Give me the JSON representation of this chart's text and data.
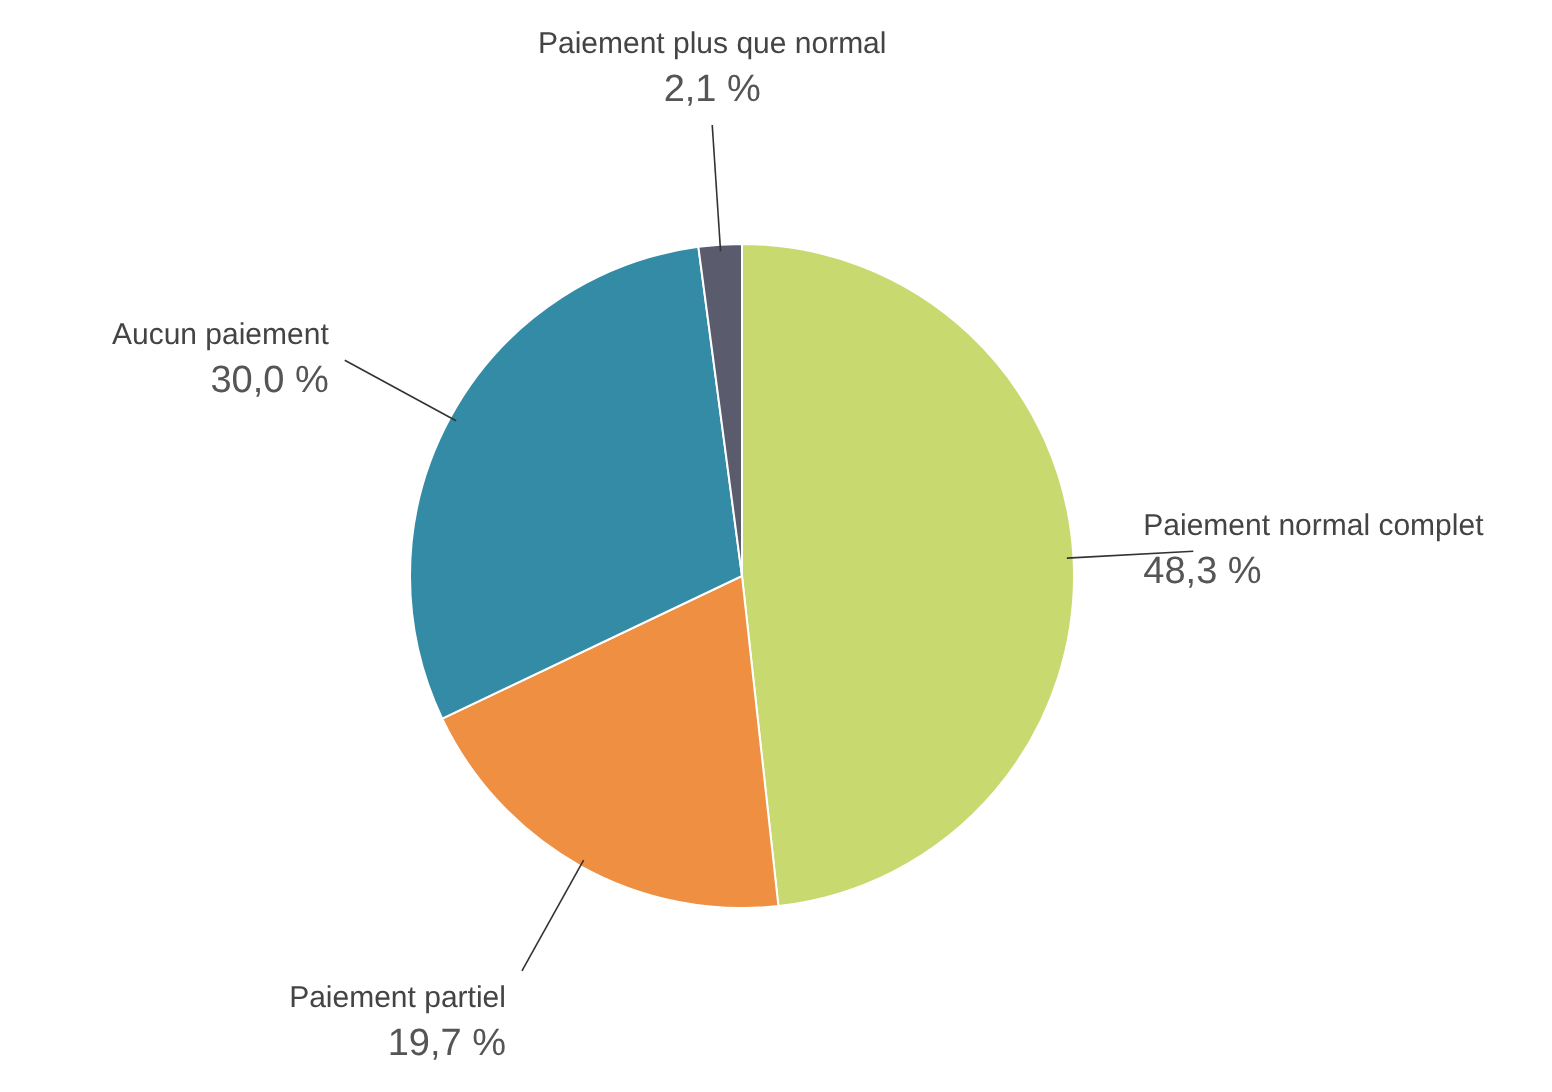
{
  "chart_data": {
    "type": "pie",
    "categories": [
      "Paiement normal complet",
      "Paiement partiel",
      "Aucun paiement",
      "Paiement plus que normal"
    ],
    "values": [
      48.3,
      19.7,
      30.0,
      2.1
    ],
    "colors": [
      "#c8d96f",
      "#ef8f42",
      "#348ba6",
      "#5b5b6e"
    ],
    "value_labels": [
      "48,3 %",
      "19,7 %",
      "30,0 %",
      "2,1 %"
    ]
  }
}
